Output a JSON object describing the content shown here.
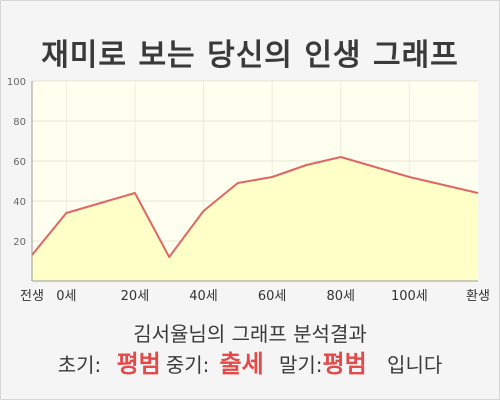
{
  "title": "재미로 보는 당신의 인생 그래프",
  "result": {
    "heading": "김서율님의 그래프 분석결과",
    "early_label": "초기:",
    "early_value": "평범",
    "middle_label": "중기:",
    "middle_value": "출세",
    "late_label": "말기:",
    "late_value": "평범",
    "ending": "입니다"
  },
  "colors": {
    "line": "#e06666",
    "fill": "#ffffc8",
    "plot_bg": "#fffff0",
    "accent": "#e34b4b"
  },
  "chart_data": {
    "type": "area",
    "title": "",
    "xlabel": "",
    "ylabel": "",
    "ylim": [
      0,
      100
    ],
    "yticks": [
      20,
      40,
      60,
      80,
      100
    ],
    "xticks": [
      "전생",
      "0세",
      "20세",
      "40세",
      "60세",
      "80세",
      "100세",
      "환생"
    ],
    "grid": true,
    "legend": "none",
    "series": [
      {
        "x": [
          "전생",
          "0세",
          "",
          "20세",
          "",
          "40세",
          "",
          "60세",
          "",
          "80세",
          "",
          "100세",
          "",
          "환생"
        ],
        "values": [
          13,
          34,
          39,
          44,
          12,
          35,
          49,
          52,
          58,
          62,
          57,
          52,
          48,
          44
        ]
      }
    ]
  }
}
